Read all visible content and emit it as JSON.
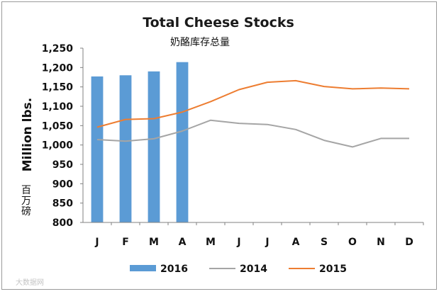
{
  "chart_data": {
    "type": "bar",
    "title": "Total Cheese Stocks",
    "subtitle": "奶酪库存总量",
    "ylabel": "Million lbs.",
    "ylabel_cn": "百万磅",
    "categories": [
      "J",
      "F",
      "M",
      "A",
      "M",
      "J",
      "J",
      "A",
      "S",
      "O",
      "N",
      "D"
    ],
    "yticks": [
      "1,250",
      "1,200",
      "1,150",
      "1,100",
      "1,050",
      "1,000",
      "950",
      "900",
      "850",
      "800"
    ],
    "ylim": [
      800,
      1250
    ],
    "grid": false,
    "legend_position": "bottom",
    "series": [
      {
        "name": "2016",
        "type": "bar",
        "color": "#5b9bd5",
        "values": [
          1177,
          1180,
          1190,
          1214,
          null,
          null,
          null,
          null,
          null,
          null,
          null,
          null
        ]
      },
      {
        "name": "2014",
        "type": "line",
        "color": "#a5a5a5",
        "values": [
          1014,
          1010,
          1016,
          1036,
          1064,
          1056,
          1053,
          1040,
          1012,
          995,
          1017,
          1017
        ]
      },
      {
        "name": "2015",
        "type": "line",
        "color": "#ed7d31",
        "values": [
          1046,
          1066,
          1068,
          1085,
          1112,
          1143,
          1162,
          1166,
          1151,
          1145,
          1147,
          1145
        ]
      }
    ]
  },
  "watermark": "大数据网"
}
